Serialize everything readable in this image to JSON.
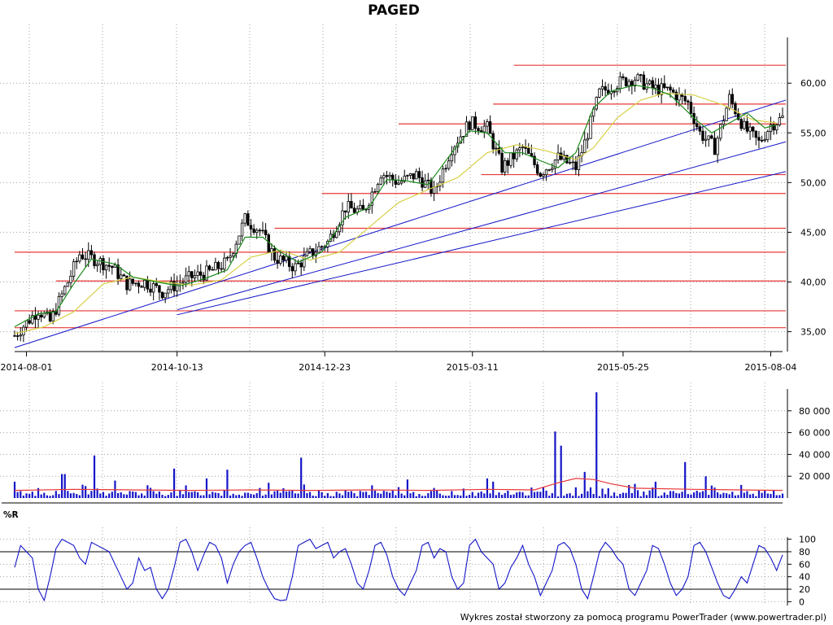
{
  "title": "PAGED",
  "credit": "Wykres został stworzony za pomocą programu PowerTrader (www.powertrader.pl)",
  "colors": {
    "candle": "#000000",
    "ma_short": "#1a8a1a",
    "ma_long": "#d8d048",
    "trendline": "#1515c8",
    "level": "#e83838",
    "volume_bar": "#1515c8",
    "volume_avg": "#e83838",
    "wr_line": "#1515c8",
    "grid": "#a0a0a0"
  },
  "chart_data": [
    {
      "type": "candlestick",
      "title": "PAGED",
      "x_tick_labels": [
        "2014-08-01",
        "2014-10-13",
        "2014-12-23",
        "2015-03-11",
        "2015-05-25",
        "2015-08-04"
      ],
      "y_tick_labels": [
        "35,00",
        "40,00",
        "45,00",
        "50,00",
        "55,00",
        "60,00"
      ],
      "y_ticks": [
        35,
        40,
        45,
        50,
        55,
        60
      ],
      "ylim": [
        33,
        64.6
      ],
      "x_range": [
        0,
        260
      ],
      "x_tick_positions": [
        4,
        55,
        105,
        155,
        206,
        256
      ],
      "grid": true,
      "series": [
        {
          "name": "",
          "x": [
            0,
            8,
            12,
            18,
            22,
            27,
            33,
            38,
            44,
            50,
            55,
            60,
            66,
            72,
            78,
            83,
            88,
            95,
            100,
            106,
            112,
            118,
            124,
            130,
            136,
            142,
            148,
            154,
            160,
            165,
            172,
            178,
            184,
            190,
            193,
            198,
            204,
            210,
            216,
            222,
            228,
            232,
            237,
            242,
            247,
            252,
            256,
            260
          ],
          "close": [
            34.6,
            37.2,
            36.0,
            40.0,
            42.8,
            42.3,
            41.5,
            39.8,
            40.0,
            39.0,
            39.8,
            40.5,
            41.0,
            42.0,
            46.3,
            45.2,
            42.5,
            41.5,
            42.8,
            44.0,
            47.5,
            47.0,
            51.0,
            50.0,
            50.8,
            49.0,
            53.5,
            56.0,
            55.5,
            51.5,
            53.5,
            51.0,
            52.5,
            51.5,
            54.0,
            59.0,
            60.0,
            60.5,
            59.5,
            59.2,
            58.0,
            55.0,
            53.5,
            58.5,
            55.5,
            54.0,
            55.8,
            56.5
          ]
        }
      ],
      "moving_average_short": {
        "x": [
          0,
          8,
          14,
          20,
          26,
          34,
          40,
          48,
          56,
          64,
          72,
          78,
          84,
          90,
          96,
          104,
          112,
          120,
          126,
          132,
          140,
          148,
          154,
          160,
          166,
          172,
          178,
          184,
          190,
          196,
          202,
          210,
          216,
          222,
          230,
          236,
          242,
          248,
          254,
          258
        ],
        "values": [
          35.5,
          36.8,
          37.0,
          39.8,
          42.3,
          41.8,
          40.5,
          40.0,
          39.6,
          40.3,
          41.2,
          44.5,
          44.5,
          43.0,
          42.0,
          43.0,
          46.5,
          47.5,
          50.3,
          50.2,
          49.8,
          53.0,
          55.2,
          55.0,
          53.0,
          53.0,
          52.2,
          51.5,
          53.0,
          57.5,
          59.2,
          59.8,
          59.5,
          58.8,
          56.5,
          55.0,
          56.0,
          57.0,
          55.5,
          55.8
        ]
      },
      "moving_average_long": {
        "x": [
          0,
          10,
          20,
          30,
          40,
          50,
          60,
          70,
          80,
          90,
          100,
          110,
          120,
          130,
          140,
          150,
          160,
          170,
          180,
          190,
          196,
          204,
          212,
          220,
          230,
          240,
          250,
          258
        ],
        "values": [
          34.8,
          35.5,
          37.0,
          39.8,
          40.5,
          40.0,
          39.7,
          40.2,
          42.5,
          43.2,
          42.2,
          43.0,
          45.5,
          48.0,
          49.3,
          50.5,
          53.0,
          53.8,
          53.2,
          52.3,
          53.5,
          56.5,
          58.3,
          59.0,
          58.8,
          57.8,
          56.3,
          56.0
        ]
      },
      "horizontal_levels": [
        {
          "value": 35.4,
          "x_from": 0,
          "x_to": 262
        },
        {
          "value": 37.1,
          "x_from": 0,
          "x_to": 262
        },
        {
          "value": 40.1,
          "x_from": 14,
          "x_to": 262
        },
        {
          "value": 43.0,
          "x_from": 0,
          "x_to": 262
        },
        {
          "value": 45.4,
          "x_from": 88,
          "x_to": 262
        },
        {
          "value": 48.9,
          "x_from": 104,
          "x_to": 262
        },
        {
          "value": 50.8,
          "x_from": 158,
          "x_to": 262
        },
        {
          "value": 55.9,
          "x_from": 130,
          "x_to": 262
        },
        {
          "value": 57.9,
          "x_from": 162,
          "x_to": 262
        },
        {
          "value": 61.8,
          "x_from": 169,
          "x_to": 262
        }
      ],
      "trendlines": [
        {
          "x": [
            0,
            262
          ],
          "y": [
            33.4,
            58.3
          ]
        },
        {
          "x": [
            55,
            262
          ],
          "y": [
            37.2,
            54.1
          ]
        },
        {
          "x": [
            55,
            262
          ],
          "y": [
            36.7,
            51.1
          ]
        }
      ]
    },
    {
      "type": "bar",
      "title": "",
      "y_tick_labels": [
        "20 000",
        "40 000",
        "60 000",
        "80 000"
      ],
      "y_ticks": [
        20000,
        40000,
        60000,
        80000
      ],
      "ylim": [
        0,
        100000
      ],
      "x_range": [
        0,
        260
      ],
      "grid": true,
      "series": [
        {
          "name": "",
          "x": [
            0,
            16,
            17,
            27,
            34,
            54,
            65,
            72,
            86,
            97,
            133,
            160,
            162,
            183,
            185,
            193,
            197,
            210,
            217,
            227,
            234,
            246
          ],
          "values": [
            15000,
            22000,
            22000,
            39000,
            16000,
            27000,
            18000,
            26000,
            14000,
            37000,
            17000,
            18000,
            15000,
            61000,
            48000,
            24000,
            97000,
            13000,
            15000,
            33000,
            20000,
            12000
          ]
        }
      ],
      "average": {
        "x": [
          0,
          20,
          40,
          60,
          80,
          100,
          120,
          140,
          160,
          176,
          184,
          190,
          196,
          202,
          210,
          230,
          260
        ],
        "values": [
          7000,
          8000,
          7500,
          7000,
          7500,
          7000,
          7500,
          7000,
          8000,
          7500,
          14000,
          18000,
          17000,
          13000,
          9000,
          8000,
          7000
        ]
      }
    },
    {
      "type": "line",
      "title": "%R",
      "y_tick_labels": [
        "0",
        "20",
        "40",
        "60",
        "80",
        "100"
      ],
      "y_ticks": [
        0,
        20,
        40,
        60,
        80,
        100
      ],
      "ylim": [
        -6,
        106
      ],
      "x_range": [
        0,
        260
      ],
      "grid": true,
      "series": [
        {
          "name": "",
          "x": [
            0,
            2,
            4,
            6,
            8,
            10,
            12,
            14,
            16,
            18,
            20,
            22,
            24,
            26,
            28,
            30,
            32,
            34,
            36,
            38,
            40,
            42,
            44,
            46,
            48,
            50,
            52,
            54,
            56,
            58,
            60,
            62,
            64,
            66,
            68,
            70,
            72,
            74,
            76,
            78,
            80,
            82,
            84,
            86,
            88,
            90,
            92,
            94,
            96,
            98,
            100,
            102,
            104,
            106,
            108,
            110,
            112,
            114,
            116,
            118,
            120,
            122,
            124,
            126,
            128,
            130,
            132,
            134,
            136,
            138,
            140,
            142,
            144,
            146,
            148,
            150,
            152,
            154,
            156,
            158,
            160,
            162,
            164,
            166,
            168,
            170,
            172,
            174,
            176,
            178,
            180,
            182,
            184,
            186,
            188,
            190,
            192,
            194,
            196,
            198,
            200,
            202,
            204,
            206,
            208,
            210,
            212,
            214,
            216,
            218,
            220,
            222,
            224,
            226,
            228,
            230,
            232,
            234,
            236,
            238,
            240,
            242,
            244,
            246,
            248,
            250,
            252,
            254,
            256,
            258,
            260
          ],
          "values": [
            55,
            90,
            80,
            70,
            20,
            2,
            40,
            85,
            100,
            95,
            90,
            70,
            60,
            95,
            90,
            85,
            80,
            60,
            40,
            20,
            30,
            70,
            50,
            55,
            20,
            5,
            20,
            55,
            95,
            100,
            80,
            50,
            75,
            95,
            90,
            70,
            30,
            60,
            80,
            90,
            95,
            70,
            40,
            20,
            5,
            2,
            3,
            40,
            90,
            95,
            100,
            85,
            90,
            95,
            70,
            80,
            85,
            60,
            30,
            20,
            50,
            90,
            95,
            75,
            40,
            20,
            10,
            30,
            50,
            90,
            95,
            70,
            85,
            80,
            40,
            20,
            30,
            90,
            100,
            80,
            70,
            60,
            20,
            30,
            55,
            70,
            90,
            60,
            40,
            10,
            30,
            50,
            90,
            95,
            85,
            60,
            20,
            5,
            40,
            80,
            95,
            85,
            70,
            60,
            20,
            10,
            30,
            50,
            90,
            85,
            60,
            30,
            10,
            20,
            40,
            90,
            95,
            80,
            55,
            30,
            10,
            5,
            20,
            40,
            30,
            60,
            90,
            85,
            70,
            50,
            75
          ]
        }
      ],
      "reference_lines": [
        20,
        80
      ]
    }
  ]
}
